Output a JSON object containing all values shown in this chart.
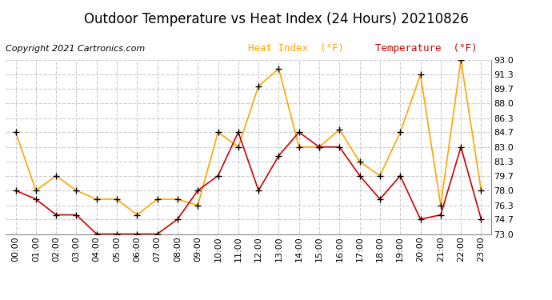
{
  "title": "Outdoor Temperature vs Heat Index (24 Hours) 20210826",
  "copyright": "Copyright 2021 Cartronics.com",
  "legend_heat": "Heat Index  (°F)",
  "legend_temp": "Temperature  (°F)",
  "hours": [
    "00:00",
    "01:00",
    "02:00",
    "03:00",
    "04:00",
    "05:00",
    "06:00",
    "07:00",
    "08:00",
    "09:00",
    "10:00",
    "11:00",
    "12:00",
    "13:00",
    "14:00",
    "15:00",
    "16:00",
    "17:00",
    "18:00",
    "19:00",
    "20:00",
    "21:00",
    "22:00",
    "23:00"
  ],
  "heat_index": [
    84.7,
    78.0,
    79.7,
    78.0,
    77.0,
    77.0,
    75.2,
    77.0,
    77.0,
    76.3,
    84.7,
    83.0,
    90.0,
    92.0,
    83.0,
    83.0,
    85.0,
    81.3,
    79.7,
    84.7,
    91.3,
    76.3,
    93.0,
    78.0
  ],
  "temperature": [
    78.0,
    77.0,
    75.2,
    75.2,
    73.0,
    73.0,
    73.0,
    73.0,
    74.7,
    78.0,
    79.7,
    84.7,
    78.0,
    82.0,
    84.7,
    83.0,
    83.0,
    79.7,
    77.0,
    79.7,
    74.7,
    75.2,
    83.0,
    74.7
  ],
  "heat_color": "#FFA500",
  "temp_color": "#CC0000",
  "ylim_min": 73.0,
  "ylim_max": 93.0,
  "yticks": [
    73.0,
    74.7,
    76.3,
    78.0,
    79.7,
    81.3,
    83.0,
    84.7,
    86.3,
    88.0,
    89.7,
    91.3,
    93.0
  ],
  "background_color": "#ffffff",
  "grid_color": "#cccccc",
  "title_fontsize": 12,
  "axis_fontsize": 8,
  "copyright_fontsize": 8,
  "legend_fontsize": 9
}
